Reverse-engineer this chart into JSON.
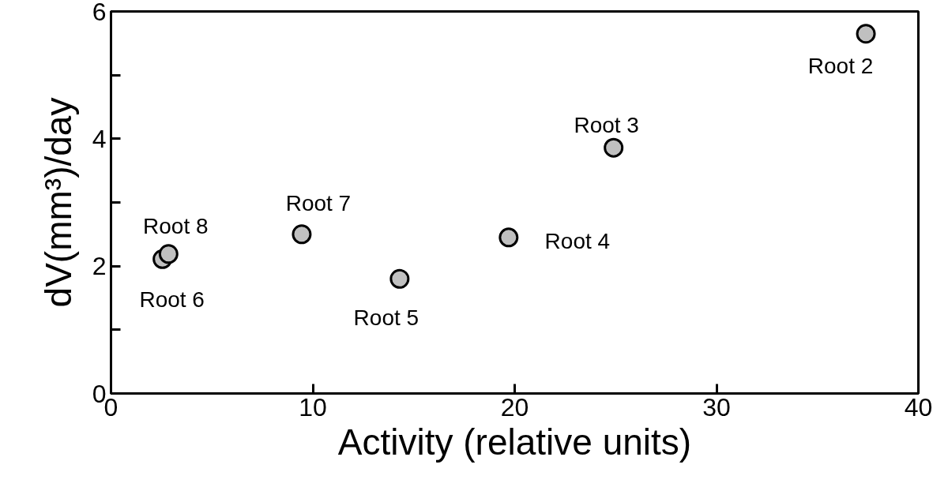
{
  "chart_data": {
    "type": "scatter",
    "xlabel": "Activity (relative units)",
    "ylabel": "dV(mm³)/day",
    "x": [
      37.4,
      24.9,
      19.7,
      14.3,
      2.55,
      9.45,
      2.85
    ],
    "series": [
      {
        "color": "#c0c0c0",
        "values": [
          5.65,
          3.86,
          2.45,
          1.8,
          2.11,
          2.5,
          2.19
        ]
      }
    ],
    "marker": "circle",
    "grid": false,
    "xlim": [
      0,
      40
    ],
    "xticks": [
      0,
      10,
      20,
      30,
      40
    ],
    "ylim": [
      0,
      6
    ],
    "yticks": [
      0,
      {
        "value": 1,
        "label": null
      },
      2,
      {
        "value": 3,
        "label": null
      },
      4,
      {
        "value": 5,
        "label": null
      },
      6
    ],
    "annotations": [
      {
        "text": "Root 2",
        "x": 37.4,
        "y": 5.65
      },
      {
        "text": "Root 3",
        "x": 24.9,
        "y": 3.86
      },
      {
        "text": "Root 4",
        "x": 19.7,
        "y": 2.45
      },
      {
        "text": "Root 5",
        "x": 14.3,
        "y": 1.8
      },
      {
        "text": "Root 6",
        "x": 2.55,
        "y": 2.11
      },
      {
        "text": "Root 7",
        "x": 9.45,
        "y": 2.5
      },
      {
        "text": "Root 8",
        "x": 2.85,
        "y": 2.19
      }
    ]
  }
}
